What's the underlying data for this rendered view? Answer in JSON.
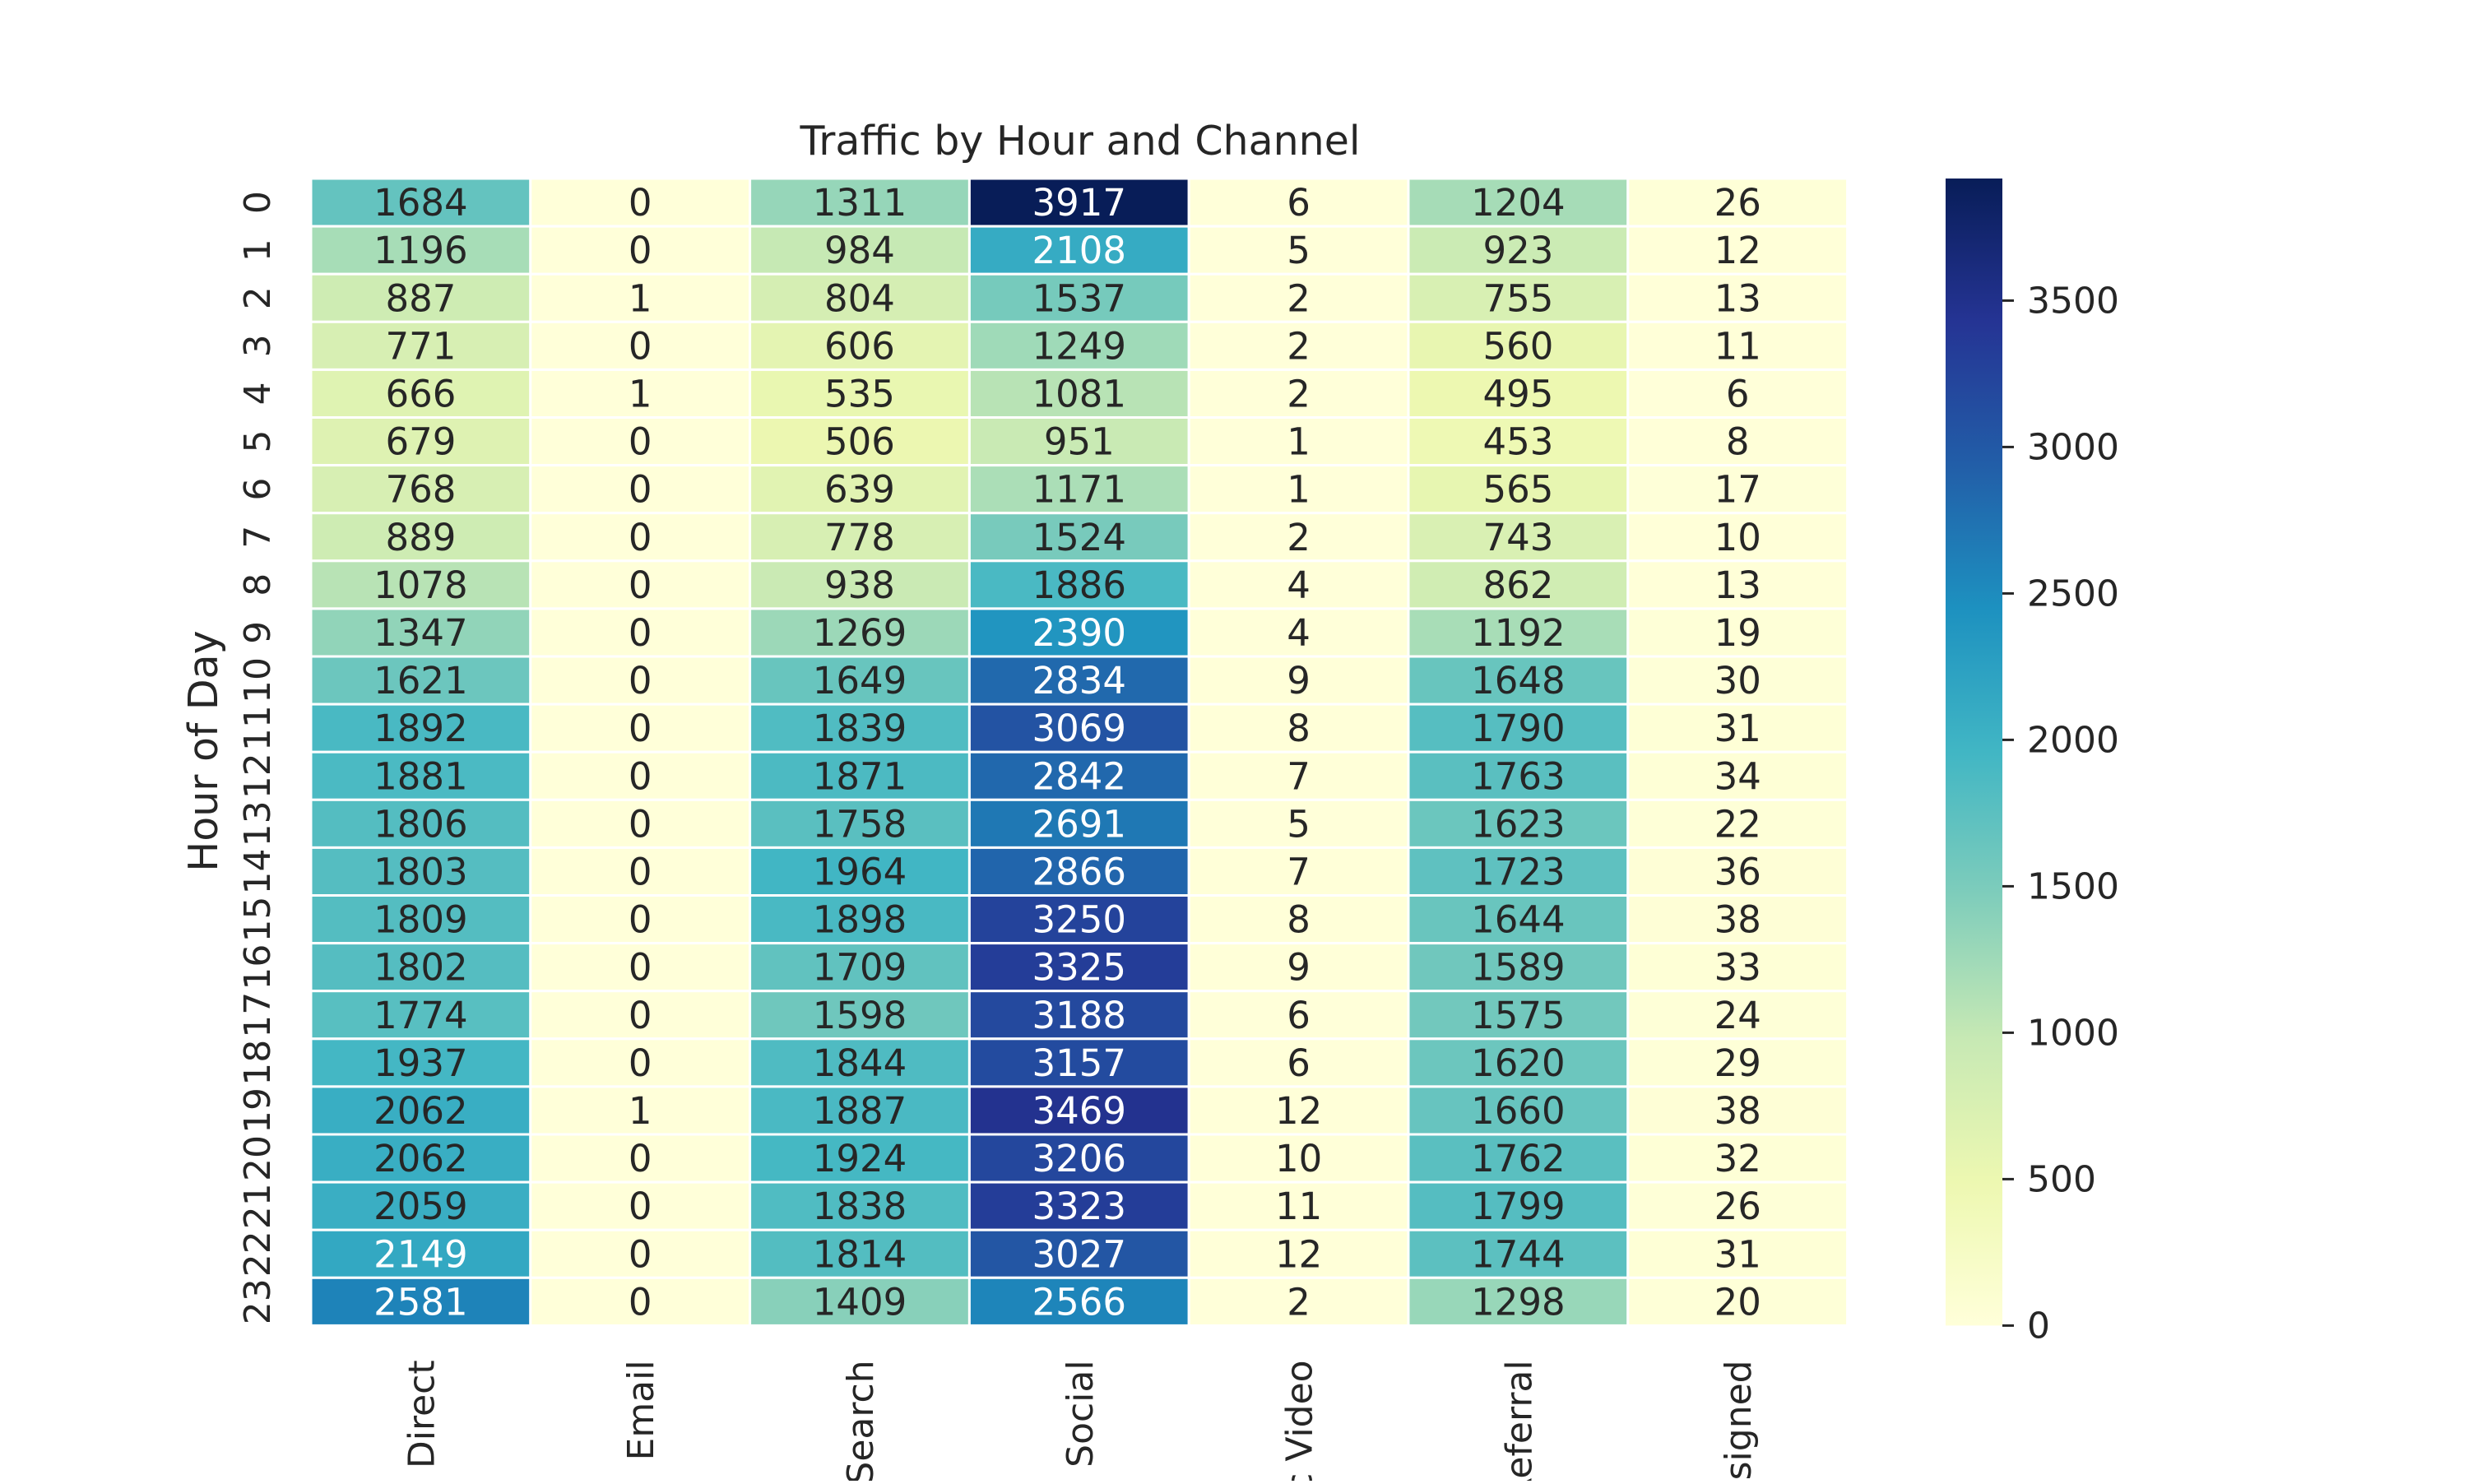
{
  "chart_data": {
    "type": "heatmap",
    "title": "Traffic by Hour and Channel",
    "xlabel": "",
    "ylabel": "Hour of Day",
    "x_tick_labels": [
      "Direct",
      "Email",
      "Search",
      "c Social",
      "ic Video",
      "Referral",
      "ssigned"
    ],
    "y_tick_labels": [
      "0",
      "1",
      "2",
      "3",
      "4",
      "5",
      "6",
      "7",
      "8",
      "9",
      "10",
      "11",
      "12",
      "13",
      "14",
      "15",
      "16",
      "17",
      "18",
      "19",
      "20",
      "21",
      "22",
      "23"
    ],
    "values": [
      [
        1684,
        0,
        1311,
        3917,
        6,
        1204,
        26
      ],
      [
        1196,
        0,
        984,
        2108,
        5,
        923,
        12
      ],
      [
        887,
        1,
        804,
        1537,
        2,
        755,
        13
      ],
      [
        771,
        0,
        606,
        1249,
        2,
        560,
        11
      ],
      [
        666,
        1,
        535,
        1081,
        2,
        495,
        6
      ],
      [
        679,
        0,
        506,
        951,
        1,
        453,
        8
      ],
      [
        768,
        0,
        639,
        1171,
        1,
        565,
        17
      ],
      [
        889,
        0,
        778,
        1524,
        2,
        743,
        10
      ],
      [
        1078,
        0,
        938,
        1886,
        4,
        862,
        13
      ],
      [
        1347,
        0,
        1269,
        2390,
        4,
        1192,
        19
      ],
      [
        1621,
        0,
        1649,
        2834,
        9,
        1648,
        30
      ],
      [
        1892,
        0,
        1839,
        3069,
        8,
        1790,
        31
      ],
      [
        1881,
        0,
        1871,
        2842,
        7,
        1763,
        34
      ],
      [
        1806,
        0,
        1758,
        2691,
        5,
        1623,
        22
      ],
      [
        1803,
        0,
        1964,
        2866,
        7,
        1723,
        36
      ],
      [
        1809,
        0,
        1898,
        3250,
        8,
        1644,
        38
      ],
      [
        1802,
        0,
        1709,
        3325,
        9,
        1589,
        33
      ],
      [
        1774,
        0,
        1598,
        3188,
        6,
        1575,
        24
      ],
      [
        1937,
        0,
        1844,
        3157,
        6,
        1620,
        29
      ],
      [
        2062,
        1,
        1887,
        3469,
        12,
        1660,
        38
      ],
      [
        2062,
        0,
        1924,
        3206,
        10,
        1762,
        32
      ],
      [
        2059,
        0,
        1838,
        3323,
        11,
        1799,
        26
      ],
      [
        2149,
        0,
        1814,
        3027,
        12,
        1744,
        31
      ],
      [
        2581,
        0,
        1409,
        2566,
        2,
        1298,
        20
      ]
    ],
    "colorbar": {
      "ticks": [
        0,
        500,
        1000,
        1500,
        2000,
        2500,
        3000,
        3500
      ],
      "min": 0,
      "max": 3917,
      "colormap": "YlGnBu"
    },
    "colors": {
      "cell_border": "#ffffff",
      "text_dark": "#262626",
      "text_light": "#ffffff",
      "ylgnbu_stops": [
        "#ffffd9",
        "#edf8b1",
        "#c7e9b4",
        "#7fcdbb",
        "#41b6c4",
        "#1d91c0",
        "#225ea8",
        "#253494",
        "#081d58"
      ]
    }
  }
}
